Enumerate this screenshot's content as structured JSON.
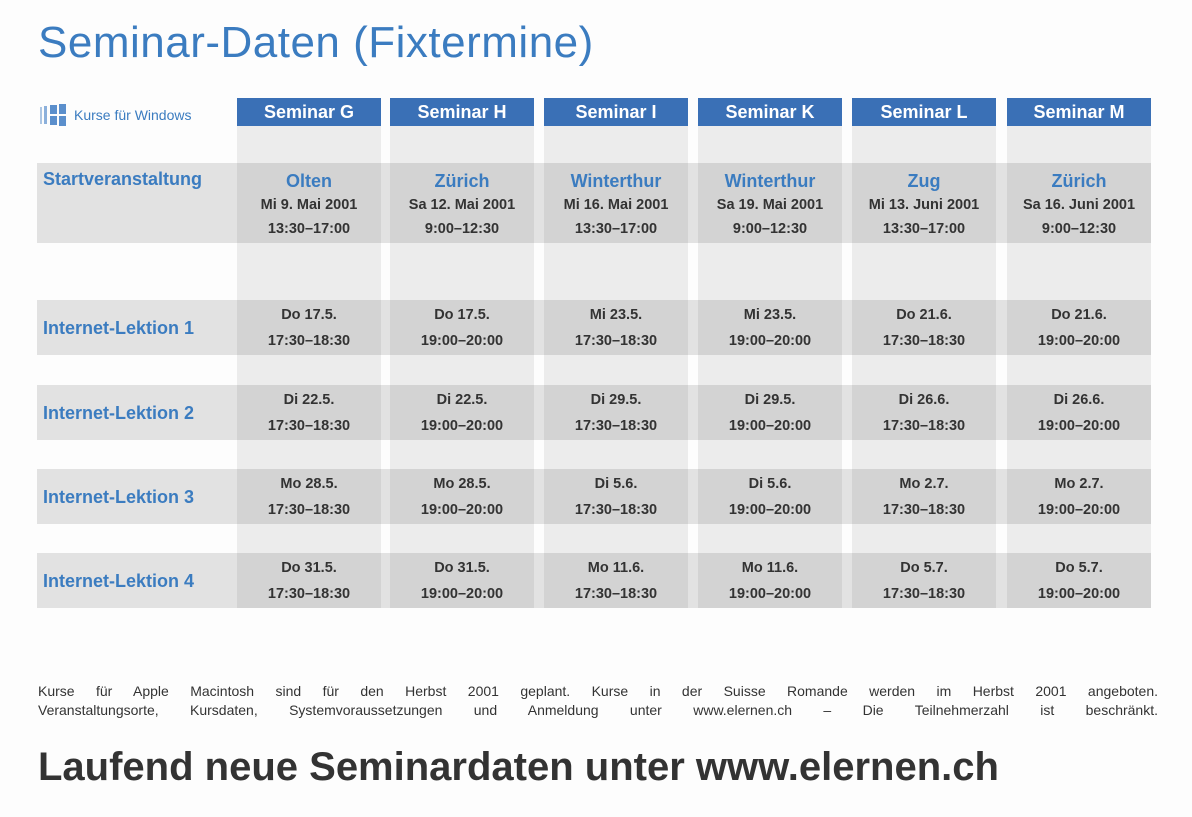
{
  "title": "Seminar-Daten (Fixtermine)",
  "platform_label": "Kurse für Windows",
  "colors": {
    "accent": "#3a70b6",
    "text_blue": "#3b7cc0"
  },
  "seminars": [
    {
      "name": "Seminar G",
      "start": {
        "city": "Olten",
        "date": "Mi 9. Mai 2001",
        "time": "13:30–17:00"
      },
      "lessons": [
        [
          "Do 17.5.",
          "17:30–18:30"
        ],
        [
          "Di 22.5.",
          "17:30–18:30"
        ],
        [
          "Mo 28.5.",
          "17:30–18:30"
        ],
        [
          "Do 31.5.",
          "17:30–18:30"
        ]
      ]
    },
    {
      "name": "Seminar H",
      "start": {
        "city": "Zürich",
        "date": "Sa 12. Mai 2001",
        "time": "9:00–12:30"
      },
      "lessons": [
        [
          "Do 17.5.",
          "19:00–20:00"
        ],
        [
          "Di 22.5.",
          "19:00–20:00"
        ],
        [
          "Mo 28.5.",
          "19:00–20:00"
        ],
        [
          "Do 31.5.",
          "19:00–20:00"
        ]
      ]
    },
    {
      "name": "Seminar I",
      "start": {
        "city": "Winterthur",
        "date": "Mi 16. Mai 2001",
        "time": "13:30–17:00"
      },
      "lessons": [
        [
          "Mi 23.5.",
          "17:30–18:30"
        ],
        [
          "Di 29.5.",
          "17:30–18:30"
        ],
        [
          "Di 5.6.",
          "17:30–18:30"
        ],
        [
          "Mo 11.6.",
          "17:30–18:30"
        ]
      ]
    },
    {
      "name": "Seminar K",
      "start": {
        "city": "Winterthur",
        "date": "Sa 19. Mai 2001",
        "time": "9:00–12:30"
      },
      "lessons": [
        [
          "Mi 23.5.",
          "19:00–20:00"
        ],
        [
          "Di 29.5.",
          "19:00–20:00"
        ],
        [
          "Di 5.6.",
          "19:00–20:00"
        ],
        [
          "Mo 11.6.",
          "19:00–20:00"
        ]
      ]
    },
    {
      "name": "Seminar L",
      "start": {
        "city": "Zug",
        "date": "Mi 13. Juni 2001",
        "time": "13:30–17:00"
      },
      "lessons": [
        [
          "Do 21.6.",
          "17:30–18:30"
        ],
        [
          "Di 26.6.",
          "17:30–18:30"
        ],
        [
          "Mo 2.7.",
          "17:30–18:30"
        ],
        [
          "Do 5.7.",
          "17:30–18:30"
        ]
      ]
    },
    {
      "name": "Seminar M",
      "start": {
        "city": "Zürich",
        "date": "Sa 16. Juni 2001",
        "time": "9:00–12:30"
      },
      "lessons": [
        [
          "Do 21.6.",
          "19:00–20:00"
        ],
        [
          "Di 26.6.",
          "19:00–20:00"
        ],
        [
          "Mo 2.7.",
          "19:00–20:00"
        ],
        [
          "Do 5.7.",
          "19:00–20:00"
        ]
      ]
    }
  ],
  "row_labels": [
    "Startveranstaltung",
    "Internet-Lektion 1",
    "Internet-Lektion 2",
    "Internet-Lektion 3",
    "Internet-Lektion 4"
  ],
  "note": [
    "Kurse für Apple Macintosh sind für den Herbst 2001 geplant. Kurse in der Suisse Romande werden im Herbst 2001 angeboten.",
    "Veranstaltungsorte, Kursdaten, Systemvoraussetzungen und Anmeldung unter www.elernen.ch  –  Die Teilnehmerzahl ist beschränkt."
  ],
  "footer": "Laufend neue Seminardaten unter www.elernen.ch"
}
